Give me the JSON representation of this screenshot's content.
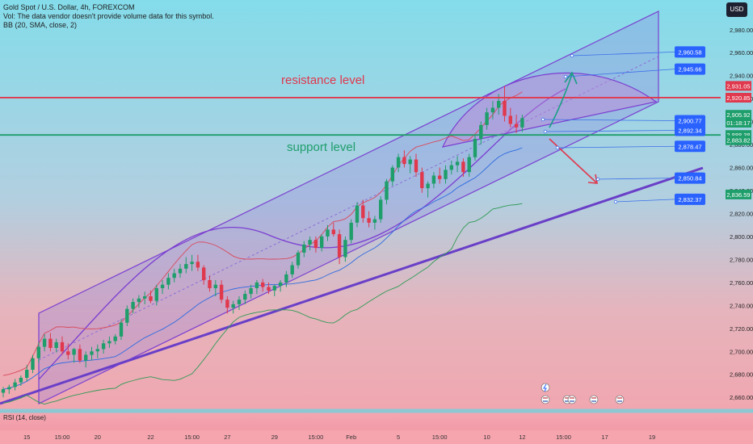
{
  "legend": {
    "symbol": "Gold Spot / U.S. Dollar, 4h, FOREXCOM",
    "vol": "Vol: The data vendor doesn't provide volume data for this symbol.",
    "bb": "BB (20, SMA, close, 2)",
    "rsi": "RSI (14, close)"
  },
  "currency_button": "USD",
  "colors": {
    "bull": "#1e9e6b",
    "bear": "#e0384d",
    "channel": "#7b3fd1",
    "resistance": "#e0384d",
    "support": "#1e9e6b",
    "label_blue": "#2962ff"
  },
  "chart_data": {
    "type": "candlestick",
    "symbol": "XAUUSD",
    "timeframe": "4h",
    "y_ticks": [
      2660,
      2680,
      2700,
      2720,
      2740,
      2760,
      2780,
      2800,
      2820,
      2840,
      2860,
      2880,
      2900,
      2920,
      2940,
      2960,
      2980
    ],
    "y_tick_labels": [
      "2,660.00",
      "2,680.00",
      "2,700.00",
      "2,720.00",
      "2,740.00",
      "2,760.00",
      "2,780.00",
      "2,800.00",
      "2,820.00",
      "2,840.00",
      "2,860.00",
      "2,880.00",
      "2,900.00",
      "2,920.00",
      "2,940.00",
      "2,960.00",
      "2,980.00"
    ],
    "x_labels": [
      "15",
      "15:00",
      "20",
      "22",
      "15:00",
      "27",
      "29",
      "15:00",
      "Feb",
      "5",
      "15:00",
      "10",
      "12",
      "15:00",
      "17",
      "19"
    ],
    "x_label_bars": [
      4,
      10,
      16,
      25,
      32,
      38,
      46,
      53,
      59,
      67,
      74,
      82,
      88,
      95,
      102,
      110
    ],
    "ylim": [
      2651,
      2996
    ],
    "candles": [
      [
        2664,
        2669,
        2660,
        2667
      ],
      [
        2667,
        2671,
        2663,
        2669
      ],
      [
        2669,
        2676,
        2666,
        2673
      ],
      [
        2673,
        2679,
        2670,
        2677
      ],
      [
        2677,
        2688,
        2674,
        2684
      ],
      [
        2684,
        2697,
        2681,
        2694
      ],
      [
        2694,
        2708,
        2690,
        2704
      ],
      [
        2704,
        2715,
        2700,
        2711
      ],
      [
        2711,
        2716,
        2700,
        2703
      ],
      [
        2703,
        2711,
        2699,
        2708
      ],
      [
        2708,
        2713,
        2697,
        2700
      ],
      [
        2700,
        2707,
        2693,
        2697
      ],
      [
        2697,
        2703,
        2690,
        2702
      ],
      [
        2702,
        2706,
        2690,
        2692
      ],
      [
        2692,
        2700,
        2686,
        2697
      ],
      [
        2697,
        2704,
        2692,
        2700
      ],
      [
        2700,
        2706,
        2694,
        2702
      ],
      [
        2702,
        2710,
        2698,
        2707
      ],
      [
        2707,
        2713,
        2703,
        2709
      ],
      [
        2709,
        2715,
        2706,
        2713
      ],
      [
        2713,
        2728,
        2710,
        2725
      ],
      [
        2725,
        2740,
        2722,
        2737
      ],
      [
        2737,
        2746,
        2733,
        2743
      ],
      [
        2743,
        2749,
        2738,
        2746
      ],
      [
        2746,
        2752,
        2741,
        2748
      ],
      [
        2748,
        2753,
        2742,
        2744
      ],
      [
        2744,
        2758,
        2740,
        2755
      ],
      [
        2755,
        2762,
        2750,
        2758
      ],
      [
        2758,
        2768,
        2754,
        2764
      ],
      [
        2764,
        2772,
        2760,
        2768
      ],
      [
        2768,
        2776,
        2764,
        2772
      ],
      [
        2772,
        2782,
        2768,
        2776
      ],
      [
        2776,
        2784,
        2770,
        2778
      ],
      [
        2778,
        2784,
        2770,
        2773
      ],
      [
        2773,
        2775,
        2758,
        2762
      ],
      [
        2762,
        2766,
        2752,
        2755
      ],
      [
        2755,
        2762,
        2748,
        2758
      ],
      [
        2758,
        2762,
        2742,
        2745
      ],
      [
        2745,
        2748,
        2733,
        2738
      ],
      [
        2738,
        2744,
        2733,
        2741
      ],
      [
        2741,
        2748,
        2736,
        2745
      ],
      [
        2745,
        2753,
        2741,
        2750
      ],
      [
        2750,
        2758,
        2746,
        2755
      ],
      [
        2755,
        2762,
        2750,
        2760
      ],
      [
        2760,
        2763,
        2752,
        2756
      ],
      [
        2756,
        2760,
        2750,
        2753
      ],
      [
        2753,
        2758,
        2748,
        2757
      ],
      [
        2757,
        2762,
        2752,
        2760
      ],
      [
        2760,
        2770,
        2756,
        2767
      ],
      [
        2767,
        2778,
        2764,
        2775
      ],
      [
        2775,
        2788,
        2772,
        2786
      ],
      [
        2786,
        2796,
        2782,
        2793
      ],
      [
        2793,
        2800,
        2788,
        2797
      ],
      [
        2797,
        2800,
        2786,
        2790
      ],
      [
        2790,
        2802,
        2787,
        2800
      ],
      [
        2800,
        2810,
        2796,
        2806
      ],
      [
        2806,
        2812,
        2800,
        2802
      ],
      [
        2802,
        2806,
        2776,
        2782
      ],
      [
        2782,
        2800,
        2778,
        2797
      ],
      [
        2797,
        2815,
        2794,
        2812
      ],
      [
        2812,
        2830,
        2808,
        2827
      ],
      [
        2827,
        2832,
        2812,
        2816
      ],
      [
        2816,
        2822,
        2808,
        2812
      ],
      [
        2812,
        2818,
        2806,
        2815
      ],
      [
        2815,
        2835,
        2812,
        2832
      ],
      [
        2832,
        2850,
        2828,
        2848
      ],
      [
        2848,
        2862,
        2844,
        2860
      ],
      [
        2860,
        2872,
        2856,
        2869
      ],
      [
        2869,
        2875,
        2860,
        2863
      ],
      [
        2863,
        2870,
        2855,
        2867
      ],
      [
        2867,
        2872,
        2852,
        2856
      ],
      [
        2856,
        2860,
        2838,
        2842
      ],
      [
        2842,
        2848,
        2834,
        2846
      ],
      [
        2846,
        2856,
        2842,
        2853
      ],
      [
        2853,
        2860,
        2846,
        2850
      ],
      [
        2850,
        2862,
        2846,
        2858
      ],
      [
        2858,
        2866,
        2854,
        2862
      ],
      [
        2862,
        2870,
        2856,
        2865
      ],
      [
        2865,
        2868,
        2852,
        2856
      ],
      [
        2856,
        2872,
        2852,
        2869
      ],
      [
        2869,
        2888,
        2866,
        2885
      ],
      [
        2885,
        2900,
        2880,
        2897
      ],
      [
        2897,
        2912,
        2893,
        2908
      ],
      [
        2908,
        2918,
        2902,
        2912
      ],
      [
        2912,
        2924,
        2906,
        2918
      ],
      [
        2918,
        2931,
        2900,
        2905
      ],
      [
        2905,
        2912,
        2895,
        2898
      ],
      [
        2898,
        2906,
        2890,
        2895
      ],
      [
        2895,
        2906,
        2891,
        2903
      ]
    ]
  },
  "annotations": {
    "resistance": "resistance level",
    "support": "support level"
  },
  "levels": {
    "resistance_price": 2920.85,
    "support_price": 2888.38
  },
  "price_labels": [
    {
      "text": "2,960.58",
      "price": 2960.58,
      "kind": "blue"
    },
    {
      "text": "2,945.66",
      "price": 2945.66,
      "kind": "blue"
    },
    {
      "text": "2,900.77",
      "price": 2900.77,
      "kind": "blue"
    },
    {
      "text": "2,892.34",
      "price": 2892.34,
      "kind": "blue"
    },
    {
      "text": "2,878.47",
      "price": 2878.47,
      "kind": "blue"
    },
    {
      "text": "2,850.84",
      "price": 2850.84,
      "kind": "blue"
    },
    {
      "text": "2,832.37",
      "price": 2832.37,
      "kind": "blue"
    }
  ],
  "axis_tags": [
    {
      "text": "2,931.05",
      "price": 2931.05,
      "color": "#e0384d"
    },
    {
      "text": "2,920.85",
      "price": 2920.85,
      "color": "#e0384d"
    },
    {
      "text": "2,905.92",
      "price": 2905.92,
      "color": "#1e9e6b"
    },
    {
      "text": "01:18:17",
      "price": 2899.0,
      "color": "#1e9e6b"
    },
    {
      "text": "2,888.38",
      "price": 2888.38,
      "color": "#1e9e6b"
    },
    {
      "text": "2,883.82",
      "price": 2883.82,
      "color": "#1e9e6b"
    },
    {
      "text": "2,836.59",
      "price": 2836.59,
      "color": "#1e9e6b"
    }
  ]
}
